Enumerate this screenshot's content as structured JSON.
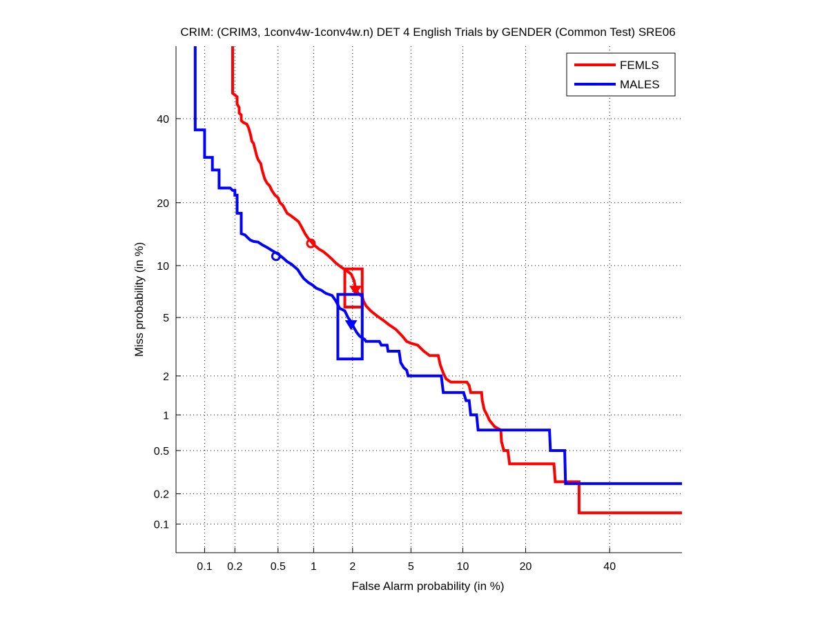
{
  "chart_data": {
    "type": "line",
    "subtype": "DET curve (probit scale)",
    "title": "CRIM: (CRIM3, 1conv4w-1conv4w.n) DET 4 English Trials by GENDER (Common Test) SRE06",
    "xlabel": "False Alarm probability (in %)",
    "ylabel": "Miss probability (in %)",
    "xscale": "probit",
    "yscale": "probit",
    "xlim": [
      0.05,
      60
    ],
    "ylim": [
      0.05,
      60
    ],
    "xticks": [
      0.1,
      0.2,
      0.5,
      1,
      2,
      5,
      10,
      20,
      40
    ],
    "xtick_labels": [
      "0.1",
      "0.2",
      "0.5",
      "1",
      "2",
      "5",
      "10",
      "20",
      "40"
    ],
    "yticks": [
      0.1,
      0.2,
      0.5,
      1,
      2,
      5,
      10,
      20,
      40
    ],
    "ytick_labels": [
      "0.1",
      "0.2",
      "0.5",
      "1",
      "2",
      "5",
      "10",
      "20",
      "40"
    ],
    "grid": true,
    "legend_position": "top-right",
    "series": [
      {
        "name": "FEMLS",
        "color": "#ff0000",
        "points": [
          [
            0.19,
            60
          ],
          [
            0.19,
            47
          ],
          [
            0.2,
            46.5
          ],
          [
            0.21,
            46
          ],
          [
            0.21,
            44
          ],
          [
            0.22,
            43
          ],
          [
            0.22,
            41.5
          ],
          [
            0.23,
            41
          ],
          [
            0.23,
            39.5
          ],
          [
            0.24,
            39
          ],
          [
            0.26,
            38.5
          ],
          [
            0.27,
            37.5
          ],
          [
            0.28,
            36
          ],
          [
            0.29,
            34
          ],
          [
            0.3,
            33.5
          ],
          [
            0.31,
            32
          ],
          [
            0.32,
            30.5
          ],
          [
            0.33,
            29.5
          ],
          [
            0.35,
            28.5
          ],
          [
            0.36,
            27
          ],
          [
            0.37,
            26
          ],
          [
            0.38,
            25
          ],
          [
            0.4,
            24
          ],
          [
            0.42,
            23.5
          ],
          [
            0.44,
            22.5
          ],
          [
            0.47,
            21.5
          ],
          [
            0.5,
            21
          ],
          [
            0.52,
            20
          ],
          [
            0.55,
            19.5
          ],
          [
            0.6,
            18
          ],
          [
            0.65,
            17.5
          ],
          [
            0.7,
            17
          ],
          [
            0.75,
            16.5
          ],
          [
            0.8,
            15.5
          ],
          [
            0.85,
            14.5
          ],
          [
            0.9,
            13.8
          ],
          [
            0.95,
            13.3
          ],
          [
            1.0,
            12.8
          ],
          [
            1.05,
            12.5
          ],
          [
            1.1,
            12.2
          ],
          [
            1.2,
            11.8
          ],
          [
            1.3,
            11.3
          ],
          [
            1.4,
            10.8
          ],
          [
            1.5,
            10.3
          ],
          [
            1.65,
            9.8
          ],
          [
            1.8,
            9.4
          ],
          [
            1.95,
            9.0
          ],
          [
            2.05,
            8.3
          ],
          [
            2.1,
            7.5
          ],
          [
            2.2,
            7.0
          ],
          [
            2.35,
            6.7
          ],
          [
            2.4,
            6.3
          ],
          [
            2.5,
            5.9
          ],
          [
            2.7,
            5.5
          ],
          [
            3.0,
            5.1
          ],
          [
            3.3,
            4.8
          ],
          [
            3.6,
            4.5
          ],
          [
            4.0,
            4.2
          ],
          [
            4.4,
            3.8
          ],
          [
            4.7,
            3.5
          ],
          [
            5.0,
            3.4
          ],
          [
            5.5,
            3.3
          ],
          [
            6.0,
            3.0
          ],
          [
            6.5,
            2.8
          ],
          [
            7.3,
            2.8
          ],
          [
            7.5,
            2.4
          ],
          [
            7.8,
            2.1
          ],
          [
            8.1,
            1.9
          ],
          [
            8.6,
            1.8
          ],
          [
            10.5,
            1.8
          ],
          [
            10.8,
            1.7
          ],
          [
            11.0,
            1.5
          ],
          [
            12.5,
            1.5
          ],
          [
            12.6,
            1.3
          ],
          [
            12.9,
            1.1
          ],
          [
            13.3,
            1.0
          ],
          [
            13.7,
            0.9
          ],
          [
            14.5,
            0.8
          ],
          [
            15.5,
            0.75
          ],
          [
            15.6,
            0.6
          ],
          [
            16.0,
            0.5
          ],
          [
            16.7,
            0.5
          ],
          [
            17.0,
            0.38
          ],
          [
            26.0,
            0.38
          ],
          [
            26.3,
            0.26
          ],
          [
            32.0,
            0.26
          ],
          [
            32.0,
            0.13
          ],
          [
            60,
            0.13
          ]
        ],
        "actual_dcf_marker": {
          "shape": "circle",
          "fa": 0.95,
          "miss": 13.0
        },
        "min_dcf_marker": {
          "shape": "down-triangle",
          "fa": 2.1,
          "miss": 7.3
        },
        "confidence_box": {
          "fa_range": [
            1.75,
            2.35
          ],
          "miss_range": [
            5.8,
            9.6
          ]
        }
      },
      {
        "name": "MALES",
        "color": "#0000ff",
        "points": [
          [
            0.08,
            60
          ],
          [
            0.08,
            37
          ],
          [
            0.1,
            37
          ],
          [
            0.1,
            30
          ],
          [
            0.12,
            30
          ],
          [
            0.12,
            27
          ],
          [
            0.14,
            27
          ],
          [
            0.14,
            23
          ],
          [
            0.18,
            23
          ],
          [
            0.19,
            22.5
          ],
          [
            0.2,
            22.5
          ],
          [
            0.2,
            21.5
          ],
          [
            0.21,
            21.5
          ],
          [
            0.21,
            18
          ],
          [
            0.23,
            18
          ],
          [
            0.23,
            14.5
          ],
          [
            0.25,
            14.3
          ],
          [
            0.26,
            14
          ],
          [
            0.28,
            13.5
          ],
          [
            0.3,
            13.3
          ],
          [
            0.33,
            13.2
          ],
          [
            0.36,
            12.8
          ],
          [
            0.4,
            12.4
          ],
          [
            0.44,
            12
          ],
          [
            0.5,
            11.5
          ],
          [
            0.55,
            11
          ],
          [
            0.6,
            10.5
          ],
          [
            0.65,
            10.2
          ],
          [
            0.7,
            9.8
          ],
          [
            0.74,
            9.5
          ],
          [
            0.78,
            9.0
          ],
          [
            0.83,
            8.5
          ],
          [
            0.9,
            8.1
          ],
          [
            0.98,
            7.8
          ],
          [
            1.05,
            7.5
          ],
          [
            1.15,
            7.3
          ],
          [
            1.25,
            7.0
          ],
          [
            1.4,
            6.8
          ],
          [
            1.5,
            6.3
          ],
          [
            1.6,
            5.7
          ],
          [
            1.75,
            5.5
          ],
          [
            1.85,
            5.0
          ],
          [
            1.95,
            4.7
          ],
          [
            2.05,
            4.3
          ],
          [
            2.15,
            4.0
          ],
          [
            2.25,
            3.8
          ],
          [
            2.45,
            3.6
          ],
          [
            2.5,
            3.5
          ],
          [
            3.1,
            3.5
          ],
          [
            3.2,
            3.3
          ],
          [
            3.5,
            3.3
          ],
          [
            3.55,
            3.0
          ],
          [
            4.2,
            3.0
          ],
          [
            4.3,
            2.5
          ],
          [
            4.5,
            2.3
          ],
          [
            4.7,
            2.2
          ],
          [
            4.8,
            2.0
          ],
          [
            7.6,
            2.0
          ],
          [
            7.8,
            1.5
          ],
          [
            10.1,
            1.5
          ],
          [
            10.4,
            1.3
          ],
          [
            10.8,
            1.3
          ],
          [
            11.0,
            1.0
          ],
          [
            11.8,
            1.0
          ],
          [
            12.0,
            0.75
          ],
          [
            25.0,
            0.75
          ],
          [
            25.2,
            0.5
          ],
          [
            28.5,
            0.5
          ],
          [
            28.7,
            0.25
          ],
          [
            60,
            0.25
          ]
        ],
        "actual_dcf_marker": {
          "shape": "circle",
          "fa": 0.48,
          "miss": 11.2
        },
        "min_dcf_marker": {
          "shape": "down-triangle",
          "fa": 1.95,
          "miss": 4.5
        },
        "confidence_box": {
          "fa_range": [
            1.55,
            2.35
          ],
          "miss_range": [
            2.65,
            6.9
          ]
        }
      }
    ]
  }
}
